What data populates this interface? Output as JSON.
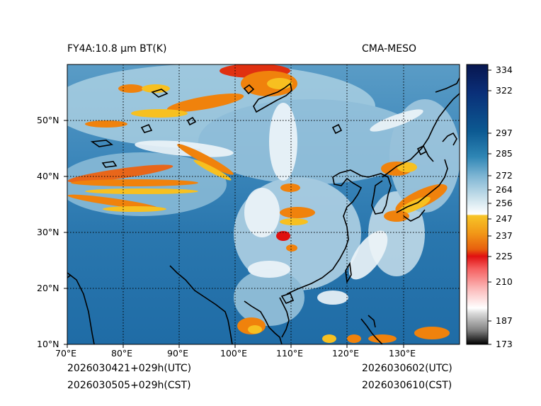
{
  "header": {
    "left_title": "FY4A:10.8 μm BT(K)",
    "right_title": "CMA-MESO"
  },
  "footer": {
    "init_utc": "2026030421+029h(UTC)",
    "init_cst": "2026030505+029h(CST)",
    "valid_utc": "2026030602(UTC)",
    "valid_cst": "2026030610(CST)"
  },
  "map": {
    "lon_range": [
      70,
      140
    ],
    "lat_range": [
      10,
      60
    ],
    "lon_ticks": [
      {
        "value": 70,
        "label": "70°E"
      },
      {
        "value": 80,
        "label": "80°E"
      },
      {
        "value": 90,
        "label": "90°E"
      },
      {
        "value": 100,
        "label": "100°E"
      },
      {
        "value": 110,
        "label": "110°E"
      },
      {
        "value": 120,
        "label": "120°E"
      },
      {
        "value": 130,
        "label": "130°E"
      }
    ],
    "lat_ticks": [
      {
        "value": 10,
        "label": "10°N"
      },
      {
        "value": 20,
        "label": "20°N"
      },
      {
        "value": 30,
        "label": "30°N"
      },
      {
        "value": 40,
        "label": "40°N"
      },
      {
        "value": 50,
        "label": "50°N"
      }
    ],
    "gridlines": "dotted"
  },
  "colorbar": {
    "range": [
      173,
      337
    ],
    "ticks": [
      {
        "value": 334,
        "label": "334"
      },
      {
        "value": 322,
        "label": "322"
      },
      {
        "value": 297,
        "label": "297"
      },
      {
        "value": 285,
        "label": "285"
      },
      {
        "value": 272,
        "label": "272"
      },
      {
        "value": 264,
        "label": "264"
      },
      {
        "value": 256,
        "label": "256"
      },
      {
        "value": 247,
        "label": "247"
      },
      {
        "value": 237,
        "label": "237"
      },
      {
        "value": 225,
        "label": "225"
      },
      {
        "value": 210,
        "label": "210"
      },
      {
        "value": 187,
        "label": "187"
      },
      {
        "value": 173,
        "label": "173"
      }
    ]
  },
  "colors": {
    "clear_sky": "#2b7bb3",
    "deep_blue": "#0e5f96",
    "mid_cloud": "#a9cfe2",
    "white_cloud": "#eef5f9",
    "cold_orange": "#f0820c",
    "cold_yellow": "#f7c020",
    "coldest_red": "#e01010",
    "coastline": "#000000"
  }
}
